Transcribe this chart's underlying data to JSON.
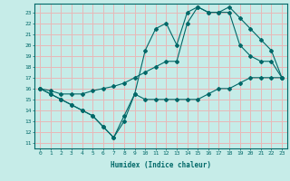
{
  "xlabel": "Humidex (Indice chaleur)",
  "bg_color": "#c6ece8",
  "grid_color": "#e8b8b8",
  "line_color": "#006868",
  "xlim": [
    -0.5,
    23.5
  ],
  "ylim": [
    10.5,
    23.8
  ],
  "yticks": [
    11,
    12,
    13,
    14,
    15,
    16,
    17,
    18,
    19,
    20,
    21,
    22,
    23
  ],
  "xticks": [
    0,
    1,
    2,
    3,
    4,
    5,
    6,
    7,
    8,
    9,
    10,
    11,
    12,
    13,
    14,
    15,
    16,
    17,
    18,
    19,
    20,
    21,
    22,
    23
  ],
  "line1_x": [
    0,
    1,
    2,
    3,
    4,
    5,
    6,
    7,
    8,
    9,
    10,
    11,
    12,
    13,
    14,
    15,
    16,
    17,
    18,
    19,
    20,
    21,
    22,
    23
  ],
  "line1_y": [
    16,
    15.5,
    15,
    14.5,
    14.0,
    13.5,
    12.5,
    11.5,
    13.0,
    15.5,
    15.0,
    15.0,
    15.0,
    15.0,
    15.0,
    15.0,
    15.5,
    16.0,
    16.0,
    16.5,
    17.0,
    17.0,
    17.0,
    17.0
  ],
  "line2_x": [
    0,
    1,
    2,
    3,
    4,
    5,
    6,
    7,
    8,
    9,
    10,
    11,
    12,
    13,
    14,
    15,
    16,
    17,
    18,
    19,
    20,
    21,
    22,
    23
  ],
  "line2_y": [
    16,
    15.5,
    15,
    14.5,
    14.0,
    13.5,
    12.5,
    11.5,
    13.5,
    15.5,
    19.5,
    21.5,
    22.0,
    20.0,
    23.0,
    23.5,
    23.0,
    23.0,
    23.0,
    20.0,
    19.0,
    18.5,
    18.5,
    17.0
  ],
  "line3_x": [
    0,
    1,
    2,
    3,
    4,
    5,
    6,
    7,
    8,
    9,
    10,
    11,
    12,
    13,
    14,
    15,
    16,
    17,
    18,
    19,
    20,
    21,
    22,
    23
  ],
  "line3_y": [
    16,
    15.8,
    15.5,
    15.5,
    15.5,
    15.8,
    16.0,
    16.2,
    16.5,
    17.0,
    17.5,
    18.0,
    18.5,
    18.5,
    22.0,
    23.5,
    23.0,
    23.0,
    23.5,
    22.5,
    21.5,
    20.5,
    19.5,
    17.0
  ]
}
